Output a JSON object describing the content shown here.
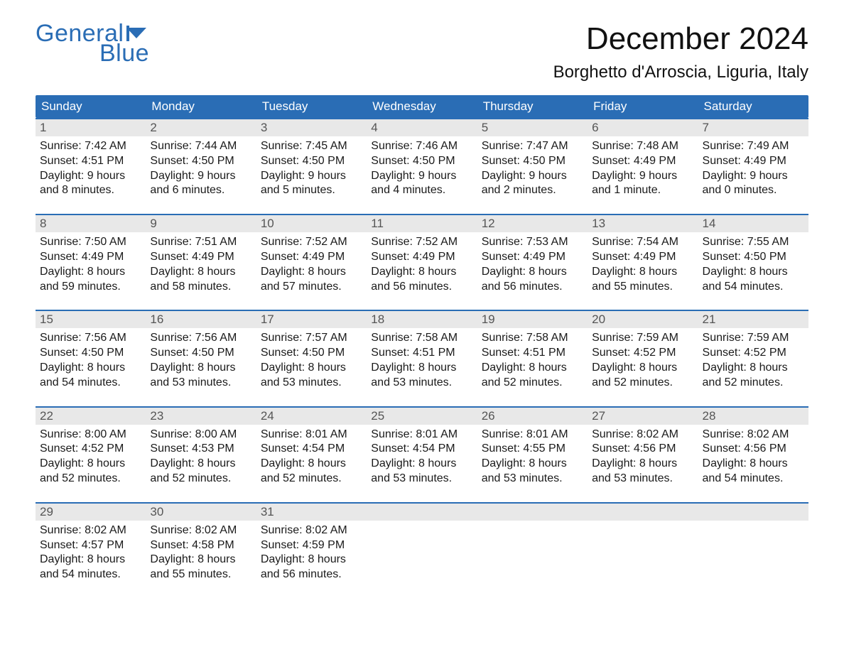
{
  "logo": {
    "top": "General",
    "bottom": "Blue",
    "color": "#2a6db5"
  },
  "title": "December 2024",
  "location": "Borghetto d'Arroscia, Liguria, Italy",
  "colors": {
    "header_bg": "#2a6db5",
    "header_text": "#ffffff",
    "daynum_bg": "#e8e8e8",
    "daynum_text": "#555555",
    "body_text": "#1a1a1a",
    "week_border": "#2a6db5"
  },
  "weekdays": [
    "Sunday",
    "Monday",
    "Tuesday",
    "Wednesday",
    "Thursday",
    "Friday",
    "Saturday"
  ],
  "labels": {
    "sunrise": "Sunrise:",
    "sunset": "Sunset:",
    "daylight": "Daylight:"
  },
  "weeks": [
    [
      {
        "n": "1",
        "sunrise": "7:42 AM",
        "sunset": "4:51 PM",
        "daylight1": "9 hours",
        "daylight2": "and 8 minutes."
      },
      {
        "n": "2",
        "sunrise": "7:44 AM",
        "sunset": "4:50 PM",
        "daylight1": "9 hours",
        "daylight2": "and 6 minutes."
      },
      {
        "n": "3",
        "sunrise": "7:45 AM",
        "sunset": "4:50 PM",
        "daylight1": "9 hours",
        "daylight2": "and 5 minutes."
      },
      {
        "n": "4",
        "sunrise": "7:46 AM",
        "sunset": "4:50 PM",
        "daylight1": "9 hours",
        "daylight2": "and 4 minutes."
      },
      {
        "n": "5",
        "sunrise": "7:47 AM",
        "sunset": "4:50 PM",
        "daylight1": "9 hours",
        "daylight2": "and 2 minutes."
      },
      {
        "n": "6",
        "sunrise": "7:48 AM",
        "sunset": "4:49 PM",
        "daylight1": "9 hours",
        "daylight2": "and 1 minute."
      },
      {
        "n": "7",
        "sunrise": "7:49 AM",
        "sunset": "4:49 PM",
        "daylight1": "9 hours",
        "daylight2": "and 0 minutes."
      }
    ],
    [
      {
        "n": "8",
        "sunrise": "7:50 AM",
        "sunset": "4:49 PM",
        "daylight1": "8 hours",
        "daylight2": "and 59 minutes."
      },
      {
        "n": "9",
        "sunrise": "7:51 AM",
        "sunset": "4:49 PM",
        "daylight1": "8 hours",
        "daylight2": "and 58 minutes."
      },
      {
        "n": "10",
        "sunrise": "7:52 AM",
        "sunset": "4:49 PM",
        "daylight1": "8 hours",
        "daylight2": "and 57 minutes."
      },
      {
        "n": "11",
        "sunrise": "7:52 AM",
        "sunset": "4:49 PM",
        "daylight1": "8 hours",
        "daylight2": "and 56 minutes."
      },
      {
        "n": "12",
        "sunrise": "7:53 AM",
        "sunset": "4:49 PM",
        "daylight1": "8 hours",
        "daylight2": "and 56 minutes."
      },
      {
        "n": "13",
        "sunrise": "7:54 AM",
        "sunset": "4:49 PM",
        "daylight1": "8 hours",
        "daylight2": "and 55 minutes."
      },
      {
        "n": "14",
        "sunrise": "7:55 AM",
        "sunset": "4:50 PM",
        "daylight1": "8 hours",
        "daylight2": "and 54 minutes."
      }
    ],
    [
      {
        "n": "15",
        "sunrise": "7:56 AM",
        "sunset": "4:50 PM",
        "daylight1": "8 hours",
        "daylight2": "and 54 minutes."
      },
      {
        "n": "16",
        "sunrise": "7:56 AM",
        "sunset": "4:50 PM",
        "daylight1": "8 hours",
        "daylight2": "and 53 minutes."
      },
      {
        "n": "17",
        "sunrise": "7:57 AM",
        "sunset": "4:50 PM",
        "daylight1": "8 hours",
        "daylight2": "and 53 minutes."
      },
      {
        "n": "18",
        "sunrise": "7:58 AM",
        "sunset": "4:51 PM",
        "daylight1": "8 hours",
        "daylight2": "and 53 minutes."
      },
      {
        "n": "19",
        "sunrise": "7:58 AM",
        "sunset": "4:51 PM",
        "daylight1": "8 hours",
        "daylight2": "and 52 minutes."
      },
      {
        "n": "20",
        "sunrise": "7:59 AM",
        "sunset": "4:52 PM",
        "daylight1": "8 hours",
        "daylight2": "and 52 minutes."
      },
      {
        "n": "21",
        "sunrise": "7:59 AM",
        "sunset": "4:52 PM",
        "daylight1": "8 hours",
        "daylight2": "and 52 minutes."
      }
    ],
    [
      {
        "n": "22",
        "sunrise": "8:00 AM",
        "sunset": "4:52 PM",
        "daylight1": "8 hours",
        "daylight2": "and 52 minutes."
      },
      {
        "n": "23",
        "sunrise": "8:00 AM",
        "sunset": "4:53 PM",
        "daylight1": "8 hours",
        "daylight2": "and 52 minutes."
      },
      {
        "n": "24",
        "sunrise": "8:01 AM",
        "sunset": "4:54 PM",
        "daylight1": "8 hours",
        "daylight2": "and 52 minutes."
      },
      {
        "n": "25",
        "sunrise": "8:01 AM",
        "sunset": "4:54 PM",
        "daylight1": "8 hours",
        "daylight2": "and 53 minutes."
      },
      {
        "n": "26",
        "sunrise": "8:01 AM",
        "sunset": "4:55 PM",
        "daylight1": "8 hours",
        "daylight2": "and 53 minutes."
      },
      {
        "n": "27",
        "sunrise": "8:02 AM",
        "sunset": "4:56 PM",
        "daylight1": "8 hours",
        "daylight2": "and 53 minutes."
      },
      {
        "n": "28",
        "sunrise": "8:02 AM",
        "sunset": "4:56 PM",
        "daylight1": "8 hours",
        "daylight2": "and 54 minutes."
      }
    ],
    [
      {
        "n": "29",
        "sunrise": "8:02 AM",
        "sunset": "4:57 PM",
        "daylight1": "8 hours",
        "daylight2": "and 54 minutes."
      },
      {
        "n": "30",
        "sunrise": "8:02 AM",
        "sunset": "4:58 PM",
        "daylight1": "8 hours",
        "daylight2": "and 55 minutes."
      },
      {
        "n": "31",
        "sunrise": "8:02 AM",
        "sunset": "4:59 PM",
        "daylight1": "8 hours",
        "daylight2": "and 56 minutes."
      },
      {
        "empty": true
      },
      {
        "empty": true
      },
      {
        "empty": true
      },
      {
        "empty": true
      }
    ]
  ]
}
